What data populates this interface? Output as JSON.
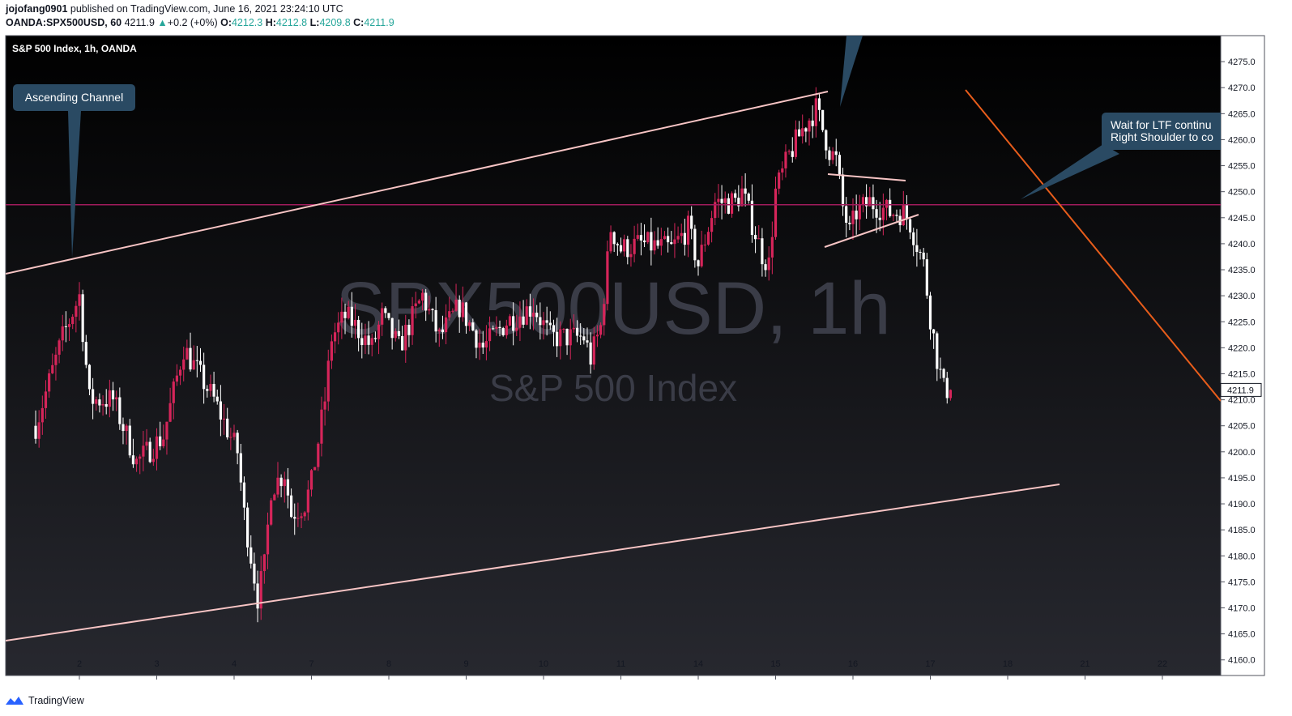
{
  "header": {
    "author": "jojofang0901",
    "published": "published on TradingView.com, June 16, 2021 23:24:10 UTC",
    "symbol": "OANDA:SPX500USD, 60",
    "last": "4211.9",
    "change": "+0.2 (+0%)",
    "open_label": "O:",
    "open": "4212.3",
    "high_label": "H:",
    "high": "4212.8",
    "low_label": "L:",
    "low": "4209.8",
    "close_label": "C:",
    "close": "4211.9"
  },
  "chart_title": "S&P 500 Index, 1h, OANDA",
  "watermark": {
    "symbol": "SPX500USD, 1h",
    "name": "S&P 500 Index"
  },
  "annotations": {
    "ascending_channel": "Ascending Channel",
    "note_line1": "Wait for LTF continu",
    "note_line2": "Right Shoulder to co"
  },
  "price_tag": "4211.9",
  "footer": {
    "brand": "TradingView"
  },
  "colors": {
    "up": "#d6255a",
    "down": "#ffffff",
    "channel": "#f7c4c4",
    "hline": "#a01b5c",
    "orange": "#e85d1b",
    "callout": "#2a4a63"
  },
  "chart_data": {
    "type": "candlestick",
    "title": "S&P 500 Index, 1h, OANDA",
    "ylim": [
      4157,
      4280
    ],
    "y_ticks": [
      4160.0,
      4165.0,
      4170.0,
      4175.0,
      4180.0,
      4185.0,
      4190.0,
      4195.0,
      4200.0,
      4205.0,
      4210.0,
      4215.0,
      4220.0,
      4225.0,
      4230.0,
      4235.0,
      4240.0,
      4245.0,
      4250.0,
      4255.0,
      4260.0,
      4265.0,
      4270.0,
      4275.0
    ],
    "x_ticks": [
      "2",
      "3",
      "4",
      "7",
      "8",
      "9",
      "10",
      "11",
      "14",
      "15",
      "16",
      "17",
      "18",
      "21",
      "22"
    ],
    "bars_per_day": 23,
    "first_tick_bar": 13,
    "horizontal_level": 4247.5,
    "close_path": [
      [
        0,
        4205
      ],
      [
        8,
        4222
      ],
      [
        13,
        4230
      ],
      [
        16,
        4210
      ],
      [
        23,
        4210
      ],
      [
        30,
        4198
      ],
      [
        38,
        4203
      ],
      [
        44,
        4220
      ],
      [
        53,
        4210
      ],
      [
        60,
        4200
      ],
      [
        62,
        4188
      ],
      [
        66,
        4172
      ],
      [
        68,
        4178
      ],
      [
        70,
        4193
      ],
      [
        74,
        4196
      ],
      [
        76,
        4188
      ],
      [
        80,
        4190
      ],
      [
        82,
        4194
      ],
      [
        86,
        4210
      ],
      [
        88,
        4222
      ],
      [
        92,
        4226
      ],
      [
        94,
        4225
      ],
      [
        100,
        4220
      ],
      [
        103,
        4226
      ],
      [
        108,
        4220
      ],
      [
        115,
        4230
      ],
      [
        120,
        4222
      ],
      [
        126,
        4228
      ],
      [
        133,
        4220
      ],
      [
        140,
        4225
      ],
      [
        148,
        4228
      ],
      [
        153,
        4222
      ],
      [
        163,
        4222
      ],
      [
        165,
        4218
      ],
      [
        168,
        4224
      ],
      [
        171,
        4243
      ],
      [
        174,
        4239
      ],
      [
        180,
        4240
      ],
      [
        189,
        4239
      ],
      [
        194,
        4243
      ],
      [
        197,
        4236
      ],
      [
        202,
        4248
      ],
      [
        208,
        4248
      ],
      [
        210,
        4250
      ],
      [
        213,
        4244
      ],
      [
        216,
        4238
      ],
      [
        218,
        4236
      ],
      [
        220,
        4250
      ],
      [
        224,
        4257
      ],
      [
        228,
        4262
      ],
      [
        232,
        4266
      ],
      [
        234,
        4262
      ],
      [
        236,
        4258
      ],
      [
        238,
        4256
      ],
      [
        240,
        4247
      ],
      [
        242,
        4242
      ],
      [
        244,
        4246
      ],
      [
        248,
        4248
      ],
      [
        254,
        4246
      ],
      [
        258,
        4246
      ],
      [
        260,
        4244
      ],
      [
        262,
        4240
      ],
      [
        264,
        4236
      ],
      [
        266,
        4226
      ],
      [
        268,
        4218
      ],
      [
        270,
        4212
      ],
      [
        272,
        4212
      ]
    ]
  }
}
